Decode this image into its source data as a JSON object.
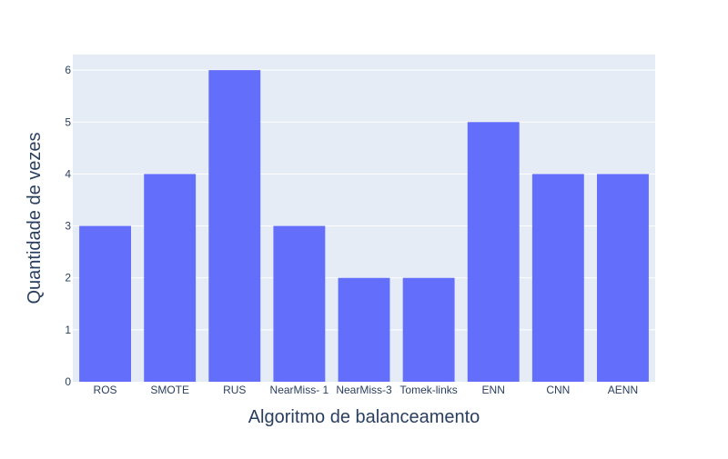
{
  "chart_data": {
    "type": "bar",
    "categories": [
      "ROS",
      "SMOTE",
      "RUS",
      "NearMiss- 1",
      "NearMiss-3",
      "Tomek-links",
      "ENN",
      "CNN",
      "AENN"
    ],
    "values": [
      3,
      4,
      6,
      3,
      2,
      2,
      5,
      4,
      4
    ],
    "title": "",
    "xlabel": "Algoritmo de balanceamento",
    "ylabel": "Quantidade de vezes",
    "ylim": [
      0,
      6.3
    ],
    "yticks": [
      0,
      1,
      2,
      3,
      4,
      5,
      6
    ],
    "grid": true,
    "legend": "none",
    "colors": {
      "bar": "#636efa",
      "plot_background": "#e5ecf6",
      "gridline": "#ffffff",
      "text": "#2a3f5f"
    }
  }
}
